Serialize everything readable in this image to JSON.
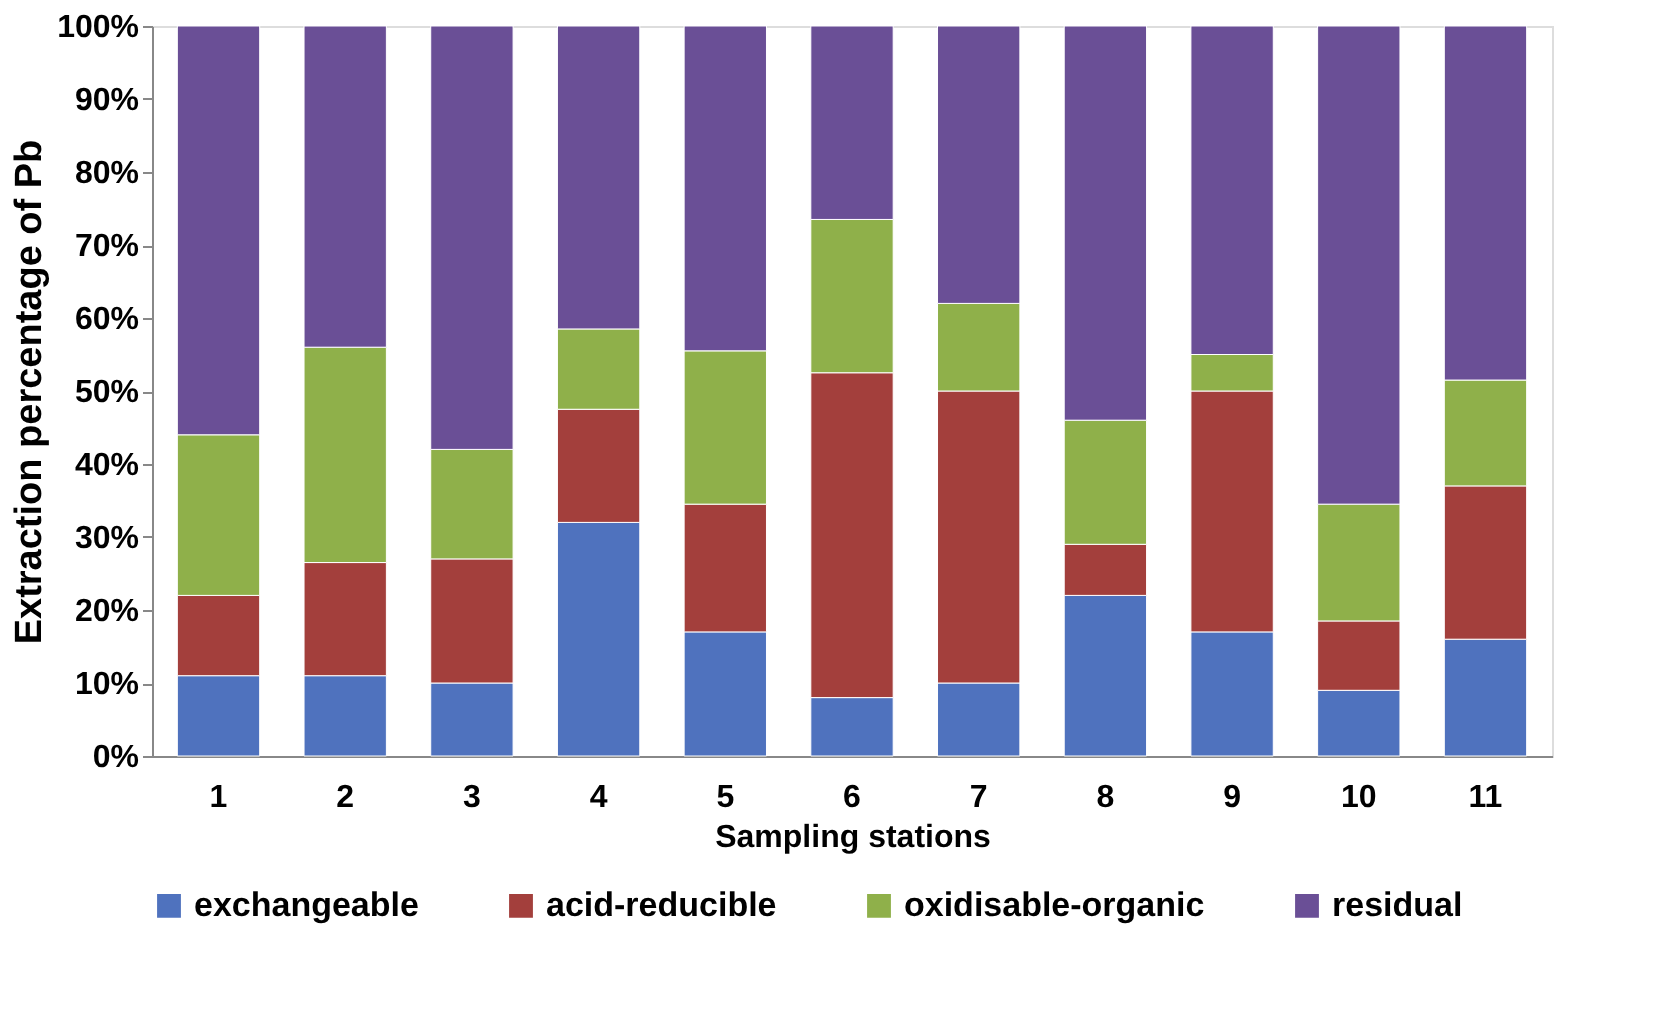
{
  "chart_data": {
    "type": "bar",
    "stacked": true,
    "xlabel": "Sampling stations",
    "ylabel": "Extraction percentage of Pb",
    "categories": [
      "1",
      "2",
      "3",
      "4",
      "5",
      "6",
      "7",
      "8",
      "9",
      "10",
      "11"
    ],
    "series": [
      {
        "name": "exchangeable",
        "color": "#4f72be",
        "values": [
          11,
          11,
          10,
          32,
          17,
          8,
          10,
          22,
          17,
          9,
          16
        ]
      },
      {
        "name": "acid-reducible",
        "color": "#a33f3c",
        "values": [
          11,
          15.5,
          17,
          15.5,
          17.5,
          44.5,
          40,
          7,
          33,
          9.5,
          21
        ]
      },
      {
        "name": "oxidisable-organic",
        "color": "#8fb04a",
        "values": [
          22,
          29.5,
          15,
          11,
          21,
          21,
          12,
          17,
          5,
          16,
          14.5
        ]
      },
      {
        "name": "residual",
        "color": "#6a4f96",
        "values": [
          56,
          44,
          58,
          41.5,
          44.5,
          26.5,
          38,
          54,
          45,
          65.5,
          48.5
        ]
      }
    ],
    "ylim": [
      0,
      100
    ],
    "yticks": [
      {
        "value": 0,
        "label": "0%"
      },
      {
        "value": 10,
        "label": "10%"
      },
      {
        "value": 20,
        "label": "20%"
      },
      {
        "value": 30,
        "label": "30%"
      },
      {
        "value": 40,
        "label": "40%"
      },
      {
        "value": 50,
        "label": "50%"
      },
      {
        "value": 60,
        "label": "60%"
      },
      {
        "value": 70,
        "label": "70%"
      },
      {
        "value": 80,
        "label": "80%"
      },
      {
        "value": 90,
        "label": "90%"
      },
      {
        "value": 100,
        "label": "100%"
      }
    ],
    "grid": false,
    "legend": "bottom"
  }
}
